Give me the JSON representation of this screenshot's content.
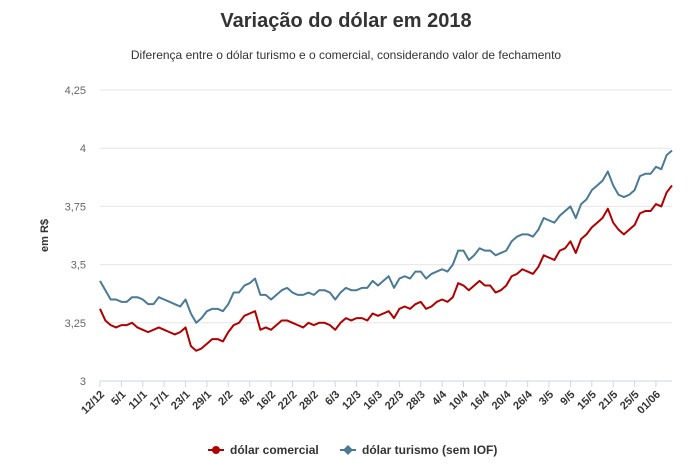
{
  "chart_data": {
    "type": "line",
    "title": "Variação do dólar em 2018",
    "subtitle": "Diferença entre o dólar turismo e o comercial, considerando valor de fechamento",
    "xlabel": "",
    "ylabel": "em R$",
    "ylim": [
      3,
      4.25
    ],
    "yticks": [
      3,
      3.25,
      3.5,
      3.75,
      4,
      4.25
    ],
    "ytick_labels": [
      "3",
      "3,25",
      "3,5",
      "3,75",
      "4",
      "4,25"
    ],
    "x_tick_labels": [
      "12/12",
      "5/1",
      "11/1",
      "17/1",
      "23/1",
      "29/1",
      "2/2",
      "8/2",
      "16/2",
      "22/2",
      "28/2",
      "6/3",
      "12/3",
      "16/3",
      "22/3",
      "28/3",
      "4/4",
      "10/4",
      "16/4",
      "20/4",
      "26/4",
      "3/5",
      "9/5",
      "15/5",
      "21/5",
      "25/5",
      "01/06"
    ],
    "x_tick_every": 4,
    "grid": true,
    "legend_position": "bottom",
    "series": [
      {
        "name": "dólar comercial",
        "color": "#b00000",
        "values": [
          3.31,
          3.26,
          3.24,
          3.23,
          3.24,
          3.24,
          3.25,
          3.23,
          3.22,
          3.21,
          3.22,
          3.23,
          3.22,
          3.21,
          3.2,
          3.21,
          3.23,
          3.15,
          3.13,
          3.14,
          3.16,
          3.18,
          3.18,
          3.17,
          3.21,
          3.24,
          3.25,
          3.28,
          3.29,
          3.3,
          3.22,
          3.23,
          3.22,
          3.24,
          3.26,
          3.26,
          3.25,
          3.24,
          3.23,
          3.25,
          3.24,
          3.25,
          3.25,
          3.24,
          3.22,
          3.25,
          3.27,
          3.26,
          3.27,
          3.27,
          3.26,
          3.29,
          3.28,
          3.29,
          3.3,
          3.27,
          3.31,
          3.32,
          3.31,
          3.33,
          3.34,
          3.31,
          3.32,
          3.34,
          3.35,
          3.34,
          3.36,
          3.42,
          3.41,
          3.39,
          3.41,
          3.43,
          3.41,
          3.41,
          3.38,
          3.39,
          3.41,
          3.45,
          3.46,
          3.48,
          3.47,
          3.46,
          3.49,
          3.54,
          3.53,
          3.52,
          3.56,
          3.57,
          3.6,
          3.55,
          3.61,
          3.63,
          3.66,
          3.68,
          3.7,
          3.74,
          3.68,
          3.65,
          3.63,
          3.65,
          3.67,
          3.72,
          3.73,
          3.73,
          3.76,
          3.75,
          3.81,
          3.84
        ]
      },
      {
        "name": "dólar turismo (sem IOF)",
        "color": "#4a7a96",
        "values": [
          3.43,
          3.39,
          3.35,
          3.35,
          3.34,
          3.34,
          3.36,
          3.36,
          3.35,
          3.33,
          3.33,
          3.36,
          3.35,
          3.34,
          3.33,
          3.32,
          3.35,
          3.29,
          3.25,
          3.27,
          3.3,
          3.31,
          3.31,
          3.3,
          3.33,
          3.38,
          3.38,
          3.41,
          3.42,
          3.44,
          3.37,
          3.37,
          3.35,
          3.37,
          3.39,
          3.4,
          3.38,
          3.37,
          3.37,
          3.38,
          3.37,
          3.39,
          3.39,
          3.38,
          3.35,
          3.38,
          3.4,
          3.39,
          3.39,
          3.4,
          3.4,
          3.43,
          3.41,
          3.43,
          3.45,
          3.4,
          3.44,
          3.45,
          3.44,
          3.47,
          3.47,
          3.44,
          3.46,
          3.47,
          3.48,
          3.47,
          3.5,
          3.56,
          3.56,
          3.52,
          3.54,
          3.57,
          3.56,
          3.56,
          3.54,
          3.55,
          3.56,
          3.6,
          3.62,
          3.63,
          3.63,
          3.62,
          3.65,
          3.7,
          3.69,
          3.68,
          3.71,
          3.73,
          3.75,
          3.7,
          3.76,
          3.78,
          3.82,
          3.84,
          3.86,
          3.9,
          3.84,
          3.8,
          3.79,
          3.8,
          3.82,
          3.88,
          3.89,
          3.89,
          3.92,
          3.91,
          3.97,
          3.99
        ]
      }
    ]
  }
}
